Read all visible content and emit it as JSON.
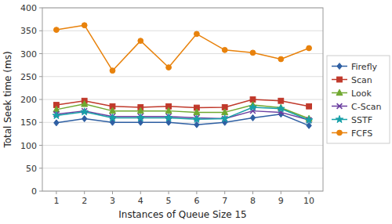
{
  "chart_data": {
    "type": "line",
    "xlabel": "Instances of Queue Size 15",
    "ylabel": "Total Seek time (ms)",
    "x": [
      1,
      2,
      3,
      4,
      5,
      6,
      7,
      8,
      9,
      10
    ],
    "series": [
      {
        "name": "Firefly",
        "color": "#2e5fa3",
        "marker": "diamond",
        "values": [
          149,
          158,
          150,
          150,
          150,
          145,
          150,
          160,
          168,
          143
        ]
      },
      {
        "name": "Scan",
        "color": "#c0392b",
        "marker": "square",
        "values": [
          188,
          197,
          185,
          183,
          185,
          182,
          183,
          200,
          197,
          185
        ]
      },
      {
        "name": "Look",
        "color": "#70a830",
        "marker": "triangle",
        "values": [
          178,
          190,
          175,
          175,
          175,
          172,
          172,
          188,
          182,
          158
        ]
      },
      {
        "name": "C-Scan",
        "color": "#6b3fa0",
        "marker": "x",
        "values": [
          168,
          175,
          163,
          163,
          163,
          160,
          158,
          175,
          172,
          155
        ]
      },
      {
        "name": "SSTF",
        "color": "#17a0a8",
        "marker": "star",
        "values": [
          165,
          173,
          160,
          160,
          160,
          157,
          158,
          183,
          180,
          155
        ]
      },
      {
        "name": "FCFS",
        "color": "#e8820c",
        "marker": "circle",
        "values": [
          352,
          362,
          263,
          328,
          270,
          343,
          308,
          302,
          288,
          312
        ]
      }
    ],
    "xlim": [
      0.5,
      10.5
    ],
    "xticks": [
      1,
      2,
      3,
      4,
      5,
      6,
      7,
      8,
      9,
      10
    ],
    "ylim": [
      0,
      400
    ],
    "yticks": [
      0,
      50,
      100,
      150,
      200,
      250,
      300,
      350,
      400
    ],
    "grid": "y",
    "legend": "right"
  }
}
